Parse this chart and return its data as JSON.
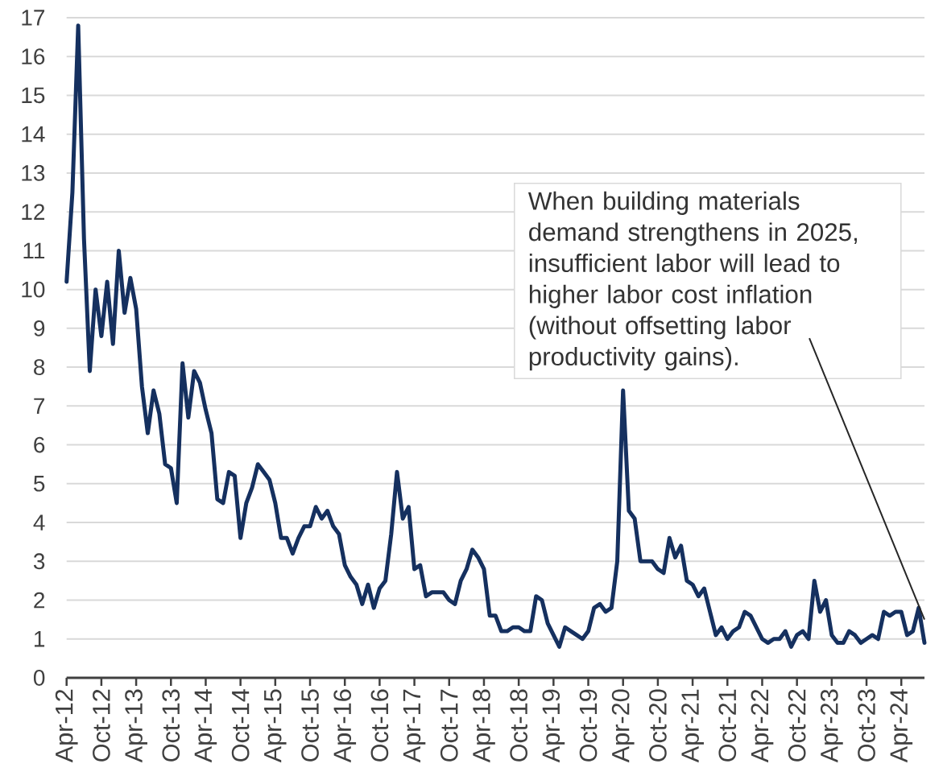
{
  "chart_data": {
    "type": "line",
    "x": [
      "2012-04",
      "2012-05",
      "2012-06",
      "2012-07",
      "2012-08",
      "2012-09",
      "2012-10",
      "2012-11",
      "2012-12",
      "2013-01",
      "2013-02",
      "2013-03",
      "2013-04",
      "2013-05",
      "2013-06",
      "2013-07",
      "2013-08",
      "2013-09",
      "2013-10",
      "2013-11",
      "2013-12",
      "2014-01",
      "2014-02",
      "2014-03",
      "2014-04",
      "2014-05",
      "2014-06",
      "2014-07",
      "2014-08",
      "2014-09",
      "2014-10",
      "2014-11",
      "2014-12",
      "2015-01",
      "2015-02",
      "2015-03",
      "2015-04",
      "2015-05",
      "2015-06",
      "2015-07",
      "2015-08",
      "2015-09",
      "2015-10",
      "2015-11",
      "2015-12",
      "2016-01",
      "2016-02",
      "2016-03",
      "2016-04",
      "2016-05",
      "2016-06",
      "2016-07",
      "2016-08",
      "2016-09",
      "2016-10",
      "2016-11",
      "2016-12",
      "2017-01",
      "2017-02",
      "2017-03",
      "2017-04",
      "2017-05",
      "2017-06",
      "2017-07",
      "2017-08",
      "2017-09",
      "2017-10",
      "2017-11",
      "2017-12",
      "2018-01",
      "2018-02",
      "2018-03",
      "2018-04",
      "2018-05",
      "2018-06",
      "2018-07",
      "2018-08",
      "2018-09",
      "2018-10",
      "2018-11",
      "2018-12",
      "2019-01",
      "2019-02",
      "2019-03",
      "2019-04",
      "2019-05",
      "2019-06",
      "2019-07",
      "2019-08",
      "2019-09",
      "2019-10",
      "2019-11",
      "2019-12",
      "2020-01",
      "2020-02",
      "2020-03",
      "2020-04",
      "2020-05",
      "2020-06",
      "2020-07",
      "2020-08",
      "2020-09",
      "2020-10",
      "2020-11",
      "2020-12",
      "2021-01",
      "2021-02",
      "2021-03",
      "2021-04",
      "2021-05",
      "2021-06",
      "2021-07",
      "2021-08",
      "2021-09",
      "2021-10",
      "2021-11",
      "2021-12",
      "2022-01",
      "2022-02",
      "2022-03",
      "2022-04",
      "2022-05",
      "2022-06",
      "2022-07",
      "2022-08",
      "2022-09",
      "2022-10",
      "2022-11",
      "2022-12",
      "2023-01",
      "2023-02",
      "2023-03",
      "2023-04",
      "2023-05",
      "2023-06",
      "2023-07",
      "2023-08",
      "2023-09",
      "2023-10",
      "2023-11",
      "2023-12",
      "2024-01",
      "2024-02",
      "2024-03",
      "2024-04",
      "2024-05",
      "2024-06",
      "2024-07",
      "2024-08"
    ],
    "values": [
      10.2,
      12.5,
      16.8,
      11.3,
      7.9,
      10.0,
      8.8,
      10.2,
      8.6,
      11.0,
      9.4,
      10.3,
      9.5,
      7.5,
      6.3,
      7.4,
      6.8,
      5.5,
      5.4,
      4.5,
      8.1,
      6.7,
      7.9,
      7.6,
      6.9,
      6.3,
      4.6,
      4.5,
      5.3,
      5.2,
      3.6,
      4.5,
      4.9,
      5.5,
      5.3,
      5.1,
      4.5,
      3.6,
      3.6,
      3.2,
      3.6,
      3.9,
      3.9,
      4.4,
      4.1,
      4.3,
      3.9,
      3.7,
      2.9,
      2.6,
      2.4,
      1.9,
      2.4,
      1.8,
      2.3,
      2.5,
      3.7,
      5.3,
      4.1,
      4.4,
      2.8,
      2.9,
      2.1,
      2.2,
      2.2,
      2.2,
      2.0,
      1.9,
      2.5,
      2.8,
      3.3,
      3.1,
      2.8,
      1.6,
      1.6,
      1.2,
      1.2,
      1.3,
      1.3,
      1.2,
      1.2,
      2.1,
      2.0,
      1.4,
      1.1,
      0.8,
      1.3,
      1.2,
      1.1,
      1.0,
      1.2,
      1.8,
      1.9,
      1.7,
      1.8,
      3.0,
      7.4,
      4.3,
      4.1,
      3.0,
      3.0,
      3.0,
      2.8,
      2.7,
      3.6,
      3.1,
      3.4,
      2.5,
      2.4,
      2.1,
      2.3,
      1.7,
      1.1,
      1.3,
      1.0,
      1.2,
      1.3,
      1.7,
      1.6,
      1.3,
      1.0,
      0.9,
      1.0,
      1.0,
      1.2,
      0.8,
      1.1,
      1.2,
      1.0,
      2.5,
      1.7,
      2.0,
      1.1,
      0.9,
      0.9,
      1.2,
      1.1,
      0.9,
      1.0,
      1.1,
      1.0,
      1.7,
      1.6,
      1.7,
      1.7,
      1.1,
      1.2,
      1.8,
      0.9
    ],
    "color": "#15305f",
    "xlim": [
      "2012-04",
      "2024-08"
    ],
    "ylim": [
      0,
      17
    ],
    "xticks": [
      {
        "value": "2012-04",
        "label": "Apr-12"
      },
      {
        "value": "2012-10",
        "label": "Oct-12"
      },
      {
        "value": "2013-04",
        "label": "Apr-13"
      },
      {
        "value": "2013-10",
        "label": "Oct-13"
      },
      {
        "value": "2014-04",
        "label": "Apr-14"
      },
      {
        "value": "2014-10",
        "label": "Oct-14"
      },
      {
        "value": "2015-04",
        "label": "Apr-15"
      },
      {
        "value": "2015-10",
        "label": "Oct-15"
      },
      {
        "value": "2016-04",
        "label": "Apr-16"
      },
      {
        "value": "2016-10",
        "label": "Oct-16"
      },
      {
        "value": "2017-04",
        "label": "Apr-17"
      },
      {
        "value": "2017-10",
        "label": "Oct-17"
      },
      {
        "value": "2018-04",
        "label": "Apr-18"
      },
      {
        "value": "2018-10",
        "label": "Oct-18"
      },
      {
        "value": "2019-04",
        "label": "Apr-19"
      },
      {
        "value": "2019-10",
        "label": "Oct-19"
      },
      {
        "value": "2020-04",
        "label": "Apr-20"
      },
      {
        "value": "2020-10",
        "label": "Oct-20"
      },
      {
        "value": "2021-04",
        "label": "Apr-21"
      },
      {
        "value": "2021-10",
        "label": "Oct-21"
      },
      {
        "value": "2022-04",
        "label": "Apr-22"
      },
      {
        "value": "2022-10",
        "label": "Oct-22"
      },
      {
        "value": "2023-04",
        "label": "Apr-23"
      },
      {
        "value": "2023-10",
        "label": "Oct-23"
      },
      {
        "value": "2024-04",
        "label": "Apr-24"
      }
    ],
    "yticks": [
      0,
      1,
      2,
      3,
      4,
      5,
      6,
      7,
      8,
      9,
      10,
      11,
      12,
      13,
      14,
      15,
      16,
      17
    ],
    "grid": "y",
    "marker": "none",
    "annotations": [
      {
        "text": "When building materials demand strengthens in 2025, insufficient labor will lead to higher labor cost inflation (without offsetting labor productivity gains).",
        "x": "2024-08",
        "y": 1.5
      }
    ]
  }
}
